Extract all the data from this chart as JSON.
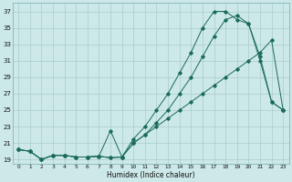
{
  "xlabel": "Humidex (Indice chaleur)",
  "bg_color": "#cce8e8",
  "grid_color": "#aacccc",
  "line_color": "#1a6b5a",
  "xlim": [
    -0.5,
    23.5
  ],
  "ylim": [
    18.5,
    38.0
  ],
  "yticks": [
    19,
    21,
    23,
    25,
    27,
    29,
    31,
    33,
    35,
    37
  ],
  "xticks": [
    0,
    1,
    2,
    3,
    4,
    5,
    6,
    7,
    8,
    9,
    10,
    11,
    12,
    13,
    14,
    15,
    16,
    17,
    18,
    19,
    20,
    21,
    22,
    23
  ],
  "line1_x": [
    0,
    1,
    2,
    3,
    4,
    5,
    6,
    7,
    8,
    9,
    10,
    11,
    12,
    13,
    14,
    15,
    16,
    17,
    18,
    19,
    20,
    21,
    22,
    23
  ],
  "line1_y": [
    20.2,
    20.0,
    19.0,
    19.5,
    19.5,
    19.3,
    19.3,
    19.4,
    19.2,
    19.3,
    21.0,
    22.0,
    23.0,
    24.0,
    25.0,
    26.0,
    27.0,
    28.0,
    29.0,
    30.0,
    31.0,
    32.0,
    33.5,
    25.0
  ],
  "line2_x": [
    0,
    1,
    2,
    3,
    4,
    5,
    6,
    7,
    8,
    9,
    10,
    11,
    12,
    13,
    14,
    15,
    16,
    17,
    18,
    19,
    20,
    21,
    22,
    23
  ],
  "line2_y": [
    20.2,
    20.0,
    19.0,
    19.5,
    19.5,
    19.3,
    19.3,
    19.4,
    19.2,
    19.3,
    21.5,
    23.0,
    25.0,
    27.0,
    29.5,
    32.0,
    35.0,
    37.0,
    37.0,
    36.0,
    35.5,
    31.0,
    26.0,
    25.0
  ],
  "line3_x": [
    0,
    1,
    2,
    3,
    4,
    5,
    6,
    7,
    8,
    9,
    10,
    11,
    12,
    13,
    14,
    15,
    16,
    17,
    18,
    19,
    20,
    21,
    22,
    23
  ],
  "line3_y": [
    20.2,
    20.0,
    19.0,
    19.5,
    19.5,
    19.3,
    19.3,
    19.4,
    22.5,
    19.3,
    21.0,
    22.0,
    23.5,
    25.0,
    27.0,
    29.0,
    31.5,
    34.0,
    36.0,
    36.5,
    35.5,
    31.5,
    26.0,
    25.0
  ]
}
